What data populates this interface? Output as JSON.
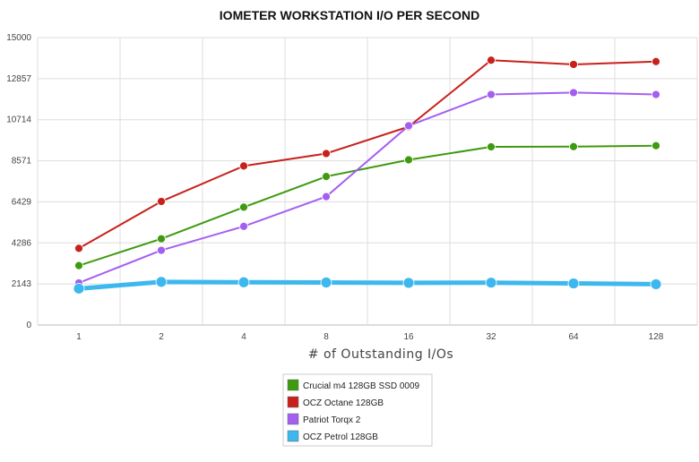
{
  "chart_data": {
    "type": "line",
    "title": "IOMETER WORKSTATION I/O PER SECOND",
    "xlabel": "# of Outstanding I/Os",
    "ylabel": "",
    "categories": [
      "1",
      "2",
      "4",
      "8",
      "16",
      "32",
      "64",
      "128"
    ],
    "ylim": [
      0,
      15000
    ],
    "yticks": [
      "0",
      "2143",
      "4286",
      "6429",
      "8571",
      "10714",
      "12857",
      "15000"
    ],
    "grid": true,
    "legend_position": "bottom",
    "series": [
      {
        "name": "Crucial m4 128GB SSD 0009",
        "color": "#3e9a0e",
        "values": [
          3100,
          4500,
          6150,
          7750,
          8620,
          9300,
          9310,
          9360
        ]
      },
      {
        "name": "OCZ Octane 128GB",
        "color": "#c8211b",
        "values": [
          4000,
          6450,
          8300,
          8950,
          10350,
          13820,
          13600,
          13750
        ]
      },
      {
        "name": "Patriot Torqx 2",
        "color": "#a45ff0",
        "values": [
          2200,
          3900,
          5150,
          6700,
          10400,
          12030,
          12130,
          12030
        ]
      },
      {
        "name": "OCZ Petrol 128GB",
        "color": "#3cb8ee",
        "values": [
          1900,
          2250,
          2230,
          2220,
          2200,
          2210,
          2170,
          2130
        ]
      }
    ]
  }
}
